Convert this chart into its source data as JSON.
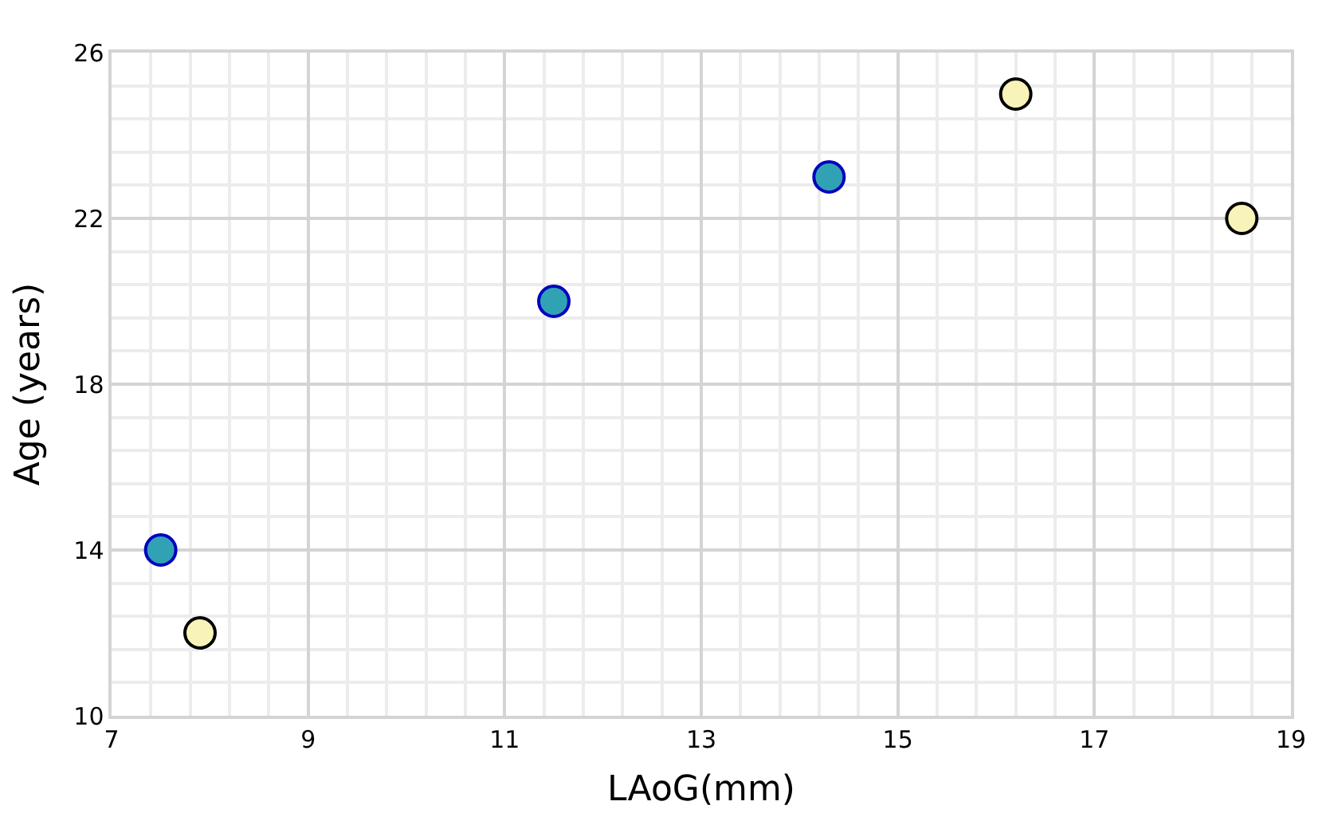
{
  "chart_data": {
    "type": "scatter",
    "xlabel": "LAoG(mm)",
    "ylabel": "Age (years)",
    "xlim": [
      7,
      19
    ],
    "xticks": [
      7,
      9,
      11,
      13,
      15,
      17,
      19
    ],
    "ylim": [
      10,
      26
    ],
    "yticks": [
      10,
      14,
      18,
      22,
      26
    ],
    "grid": true,
    "marker": "circle",
    "series": [
      {
        "color": "#31a2b4",
        "x": [
          7.5,
          11.5,
          14.3
        ],
        "values": [
          14,
          20,
          23
        ]
      },
      {
        "color": "#f8f3b8",
        "x": [
          7.9,
          16.2,
          18.5
        ],
        "values": [
          12,
          25,
          22
        ]
      }
    ]
  }
}
